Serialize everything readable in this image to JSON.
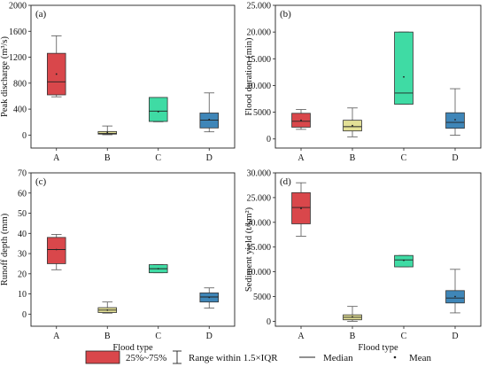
{
  "chart_data": [
    {
      "type": "box",
      "panel": "(a)",
      "ylabel": "Peak discharge (m³/s)",
      "xlabel": "",
      "categories": [
        "A",
        "B",
        "C",
        "D"
      ],
      "ylim": [
        -200,
        2000
      ],
      "yticks": [
        0,
        400,
        800,
        1200,
        1600,
        2000
      ],
      "ytick_labels": [
        "0",
        "400",
        "800",
        "1200",
        "1600",
        "2000"
      ],
      "boxes": [
        {
          "whisker_low": 590,
          "q1": 620,
          "median": 820,
          "q3": 1260,
          "whisker_high": 1530,
          "mean": 940,
          "color": "#d9474b"
        },
        {
          "whisker_low": 5,
          "q1": 15,
          "median": 25,
          "q3": 55,
          "whisker_high": 140,
          "mean": 40,
          "color": "#e3e096"
        },
        {
          "whisker_low": 205,
          "q1": 210,
          "median": 370,
          "q3": 580,
          "whisker_high": 580,
          "mean": 360,
          "color": "#3fdba4"
        },
        {
          "whisker_low": 50,
          "q1": 110,
          "median": 230,
          "q3": 340,
          "whisker_high": 650,
          "mean": 240,
          "color": "#3f86b8"
        }
      ]
    },
    {
      "type": "box",
      "panel": "(b)",
      "ylabel": "Flood duration (min)",
      "xlabel": "",
      "categories": [
        "A",
        "B",
        "C",
        "D"
      ],
      "ylim": [
        -1700,
        25000
      ],
      "yticks": [
        0,
        5000,
        10000,
        15000,
        20000,
        25000
      ],
      "ytick_labels": [
        "0",
        "5000",
        "10.000",
        "15.000",
        "20.000",
        "25.000"
      ],
      "boxes": [
        {
          "whisker_low": 1800,
          "q1": 2200,
          "median": 3300,
          "q3": 4800,
          "whisker_high": 5500,
          "mean": 3500,
          "color": "#d9474b"
        },
        {
          "whisker_low": 400,
          "q1": 1500,
          "median": 2300,
          "q3": 3500,
          "whisker_high": 5800,
          "mean": 2500,
          "color": "#e3e096"
        },
        {
          "whisker_low": 6500,
          "q1": 6500,
          "median": 8600,
          "q3": 20000,
          "whisker_high": 20000,
          "mean": 11600,
          "color": "#3fdba4"
        },
        {
          "whisker_low": 700,
          "q1": 2000,
          "median": 3100,
          "q3": 4900,
          "whisker_high": 9400,
          "mean": 3600,
          "color": "#3f86b8"
        }
      ]
    },
    {
      "type": "box",
      "panel": "(c)",
      "ylabel": "Runoff depth (mm)",
      "xlabel": "Flood type",
      "categories": [
        "A",
        "B",
        "C",
        "D"
      ],
      "ylim": [
        -6,
        70
      ],
      "yticks": [
        0,
        10,
        20,
        30,
        40,
        50,
        60,
        70
      ],
      "ytick_labels": [
        "0",
        "10",
        "20",
        "30",
        "40",
        "50",
        "60",
        "70"
      ],
      "boxes": [
        {
          "whisker_low": 22,
          "q1": 25,
          "median": 32,
          "q3": 38,
          "whisker_high": 39.5,
          "mean": 32,
          "color": "#d9474b"
        },
        {
          "whisker_low": 0.5,
          "q1": 0.8,
          "median": 2,
          "q3": 3.2,
          "whisker_high": 6,
          "mean": 2,
          "color": "#e3e096"
        },
        {
          "whisker_low": 20.5,
          "q1": 20.5,
          "median": 22.5,
          "q3": 24.5,
          "whisker_high": 24.5,
          "mean": 22.5,
          "color": "#3fdba4"
        },
        {
          "whisker_low": 3,
          "q1": 6,
          "median": 8.5,
          "q3": 10.5,
          "whisker_high": 13,
          "mean": 8.3,
          "color": "#3f86b8"
        }
      ]
    },
    {
      "type": "box",
      "panel": "(d)",
      "ylabel": "Sediment yield (t/km²)",
      "xlabel": "Flood type",
      "categories": [
        "A",
        "B",
        "C",
        "D"
      ],
      "ylim": [
        -1000,
        30000
      ],
      "yticks": [
        0,
        5000,
        10000,
        15000,
        20000,
        25000,
        30000
      ],
      "ytick_labels": [
        "0",
        "5000",
        "10.000",
        "15.000",
        "20.000",
        "25.000",
        "30.000"
      ],
      "boxes": [
        {
          "whisker_low": 17200,
          "q1": 19700,
          "median": 23000,
          "q3": 26000,
          "whisker_high": 28000,
          "mean": 22800,
          "color": "#d9474b"
        },
        {
          "whisker_low": 0,
          "q1": 300,
          "median": 800,
          "q3": 1300,
          "whisker_high": 3000,
          "mean": 900,
          "color": "#e3e096"
        },
        {
          "whisker_low": 11000,
          "q1": 11000,
          "median": 12400,
          "q3": 13300,
          "whisker_high": 13300,
          "mean": 12300,
          "color": "#3fdba4"
        },
        {
          "whisker_low": 1700,
          "q1": 3700,
          "median": 4700,
          "q3": 6200,
          "whisker_high": 10500,
          "mean": 5000,
          "color": "#3f86b8"
        }
      ]
    }
  ],
  "legend": {
    "box_label": "25%~75%",
    "box_color": "#d9474b",
    "whisker_label": "Range within 1.5×IQR",
    "median_label": "Median",
    "mean_label": "Mean"
  }
}
